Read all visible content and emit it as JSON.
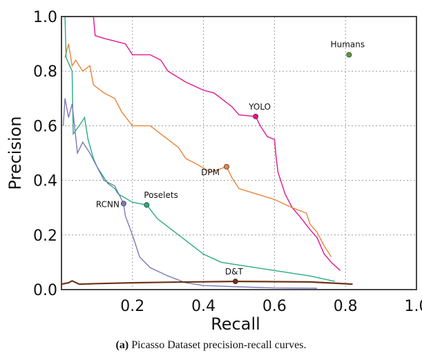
{
  "chart_data": {
    "type": "line",
    "xlabel": "Recall",
    "ylabel": "Precision",
    "xlim": [
      0,
      1
    ],
    "ylim": [
      0,
      1
    ],
    "xticks": [
      "0.2",
      "0.4",
      "0.6",
      "0.8",
      "1.0"
    ],
    "yticks": [
      "0.0",
      "0.2",
      "0.4",
      "0.6",
      "0.8",
      "1.0"
    ],
    "grid": true,
    "series": [
      {
        "name": "YOLO",
        "color": "#e0168c",
        "marker": [
          0.547,
          0.634
        ],
        "points": [
          [
            0,
            1
          ],
          [
            0.09,
            1
          ],
          [
            0.095,
            0.93
          ],
          [
            0.12,
            0.92
          ],
          [
            0.15,
            0.91
          ],
          [
            0.18,
            0.9
          ],
          [
            0.2,
            0.86
          ],
          [
            0.25,
            0.86
          ],
          [
            0.28,
            0.84
          ],
          [
            0.3,
            0.8
          ],
          [
            0.35,
            0.76
          ],
          [
            0.4,
            0.73
          ],
          [
            0.43,
            0.72
          ],
          [
            0.45,
            0.7
          ],
          [
            0.48,
            0.67
          ],
          [
            0.5,
            0.64
          ],
          [
            0.547,
            0.634
          ],
          [
            0.56,
            0.6
          ],
          [
            0.58,
            0.56
          ],
          [
            0.6,
            0.55
          ],
          [
            0.605,
            0.48
          ],
          [
            0.61,
            0.43
          ],
          [
            0.63,
            0.35
          ],
          [
            0.65,
            0.3
          ],
          [
            0.67,
            0.27
          ],
          [
            0.7,
            0.22
          ],
          [
            0.72,
            0.19
          ],
          [
            0.74,
            0.13
          ],
          [
            0.76,
            0.1
          ],
          [
            0.785,
            0.07
          ]
        ]
      },
      {
        "name": "DPM",
        "color": "#e8843a",
        "marker": [
          0.465,
          0.45
        ],
        "points": [
          [
            0.01,
            0.85
          ],
          [
            0.02,
            0.9
          ],
          [
            0.03,
            0.82
          ],
          [
            0.04,
            0.84
          ],
          [
            0.06,
            0.8
          ],
          [
            0.08,
            0.82
          ],
          [
            0.09,
            0.75
          ],
          [
            0.12,
            0.72
          ],
          [
            0.15,
            0.7
          ],
          [
            0.17,
            0.65
          ],
          [
            0.2,
            0.6
          ],
          [
            0.25,
            0.6
          ],
          [
            0.28,
            0.57
          ],
          [
            0.3,
            0.55
          ],
          [
            0.33,
            0.52
          ],
          [
            0.35,
            0.48
          ],
          [
            0.38,
            0.46
          ],
          [
            0.42,
            0.43
          ],
          [
            0.465,
            0.45
          ],
          [
            0.48,
            0.41
          ],
          [
            0.5,
            0.37
          ],
          [
            0.55,
            0.35
          ],
          [
            0.6,
            0.33
          ],
          [
            0.65,
            0.3
          ],
          [
            0.69,
            0.28
          ],
          [
            0.7,
            0.24
          ],
          [
            0.72,
            0.21
          ],
          [
            0.74,
            0.16
          ],
          [
            0.76,
            0.12
          ]
        ]
      },
      {
        "name": "Poselets",
        "color": "#2aaa80",
        "marker": [
          0.24,
          0.31
        ],
        "points": [
          [
            0.01,
            1.0
          ],
          [
            0.013,
            0.85
          ],
          [
            0.03,
            0.8
          ],
          [
            0.033,
            0.57
          ],
          [
            0.05,
            0.6
          ],
          [
            0.065,
            0.63
          ],
          [
            0.075,
            0.55
          ],
          [
            0.09,
            0.48
          ],
          [
            0.1,
            0.45
          ],
          [
            0.13,
            0.39
          ],
          [
            0.15,
            0.37
          ],
          [
            0.16,
            0.35
          ],
          [
            0.2,
            0.32
          ],
          [
            0.24,
            0.31
          ],
          [
            0.27,
            0.26
          ],
          [
            0.3,
            0.23
          ],
          [
            0.35,
            0.18
          ],
          [
            0.4,
            0.13
          ],
          [
            0.45,
            0.1
          ],
          [
            0.5,
            0.09
          ],
          [
            0.6,
            0.07
          ],
          [
            0.7,
            0.05
          ],
          [
            0.77,
            0.03
          ]
        ]
      },
      {
        "name": "RCNN",
        "color": "#7b78b8",
        "marker": [
          0.175,
          0.315
        ],
        "points": [
          [
            0.005,
            0.6
          ],
          [
            0.01,
            0.7
          ],
          [
            0.02,
            0.63
          ],
          [
            0.03,
            0.68
          ],
          [
            0.04,
            0.56
          ],
          [
            0.045,
            0.5
          ],
          [
            0.06,
            0.54
          ],
          [
            0.08,
            0.5
          ],
          [
            0.1,
            0.45
          ],
          [
            0.12,
            0.4
          ],
          [
            0.15,
            0.38
          ],
          [
            0.175,
            0.315
          ],
          [
            0.18,
            0.27
          ],
          [
            0.2,
            0.2
          ],
          [
            0.22,
            0.12
          ],
          [
            0.25,
            0.08
          ],
          [
            0.3,
            0.05
          ],
          [
            0.35,
            0.025
          ],
          [
            0.4,
            0.015
          ],
          [
            0.5,
            0.01
          ],
          [
            0.6,
            0.006
          ],
          [
            0.72,
            0.005
          ]
        ]
      },
      {
        "name": "D&T",
        "color": "#6b3318",
        "marker": [
          0.49,
          0.03
        ],
        "points": [
          [
            0,
            0.02
          ],
          [
            0.02,
            0.025
          ],
          [
            0.03,
            0.032
          ],
          [
            0.05,
            0.02
          ],
          [
            0.1,
            0.022
          ],
          [
            0.2,
            0.025
          ],
          [
            0.3,
            0.027
          ],
          [
            0.49,
            0.03
          ],
          [
            0.7,
            0.028
          ],
          [
            0.82,
            0.02
          ]
        ]
      },
      {
        "name": "Humans",
        "color": "#5a9a3a",
        "marker": [
          0.81,
          0.86
        ],
        "points": []
      }
    ]
  },
  "caption": {
    "label": "(a)",
    "text": " Picasso Dataset precision-recall curves."
  }
}
